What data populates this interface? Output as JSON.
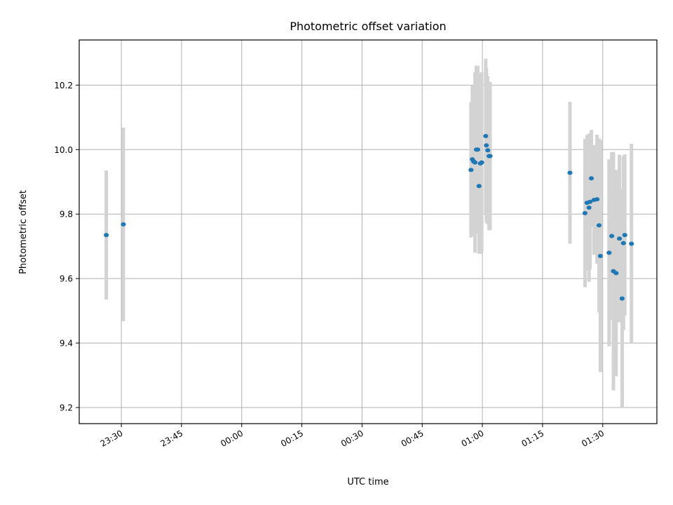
{
  "chart_data": {
    "type": "scatter",
    "title": "Photometric offset variation",
    "xlabel": "UTC time",
    "ylabel": "Photometric offset",
    "x_unit": "UTC time (HH:MM)",
    "xlim": [
      "23:19:30",
      "01:43:30"
    ],
    "ylim": [
      9.15,
      10.34
    ],
    "xticks": [
      "23:30",
      "23:45",
      "00:00",
      "00:15",
      "00:30",
      "00:45",
      "01:00",
      "01:15",
      "01:30"
    ],
    "yticks": [
      9.2,
      9.4,
      9.6,
      9.8,
      10.0,
      10.2
    ],
    "grid": true,
    "legend": "none",
    "colors": {
      "point": "#1f77b4",
      "errorbar": "#d3d3d3",
      "grid": "#b0b0b0"
    },
    "series": [
      {
        "points": [
          {
            "x": "23:26:15",
            "y": 9.735,
            "yerr": 0.2
          },
          {
            "x": "23:30:30",
            "y": 9.768,
            "yerr": 0.3
          },
          {
            "x": "00:57:10",
            "y": 9.937,
            "yerr": 0.21
          },
          {
            "x": "00:57:30",
            "y": 9.97,
            "yerr": 0.23
          },
          {
            "x": "00:57:50",
            "y": 9.963,
            "yerr": 0.23
          },
          {
            "x": "00:58:10",
            "y": 9.96,
            "yerr": 0.28
          },
          {
            "x": "00:58:30",
            "y": 10.0,
            "yerr": 0.26
          },
          {
            "x": "00:58:50",
            "y": 10.0,
            "yerr": 0.26
          },
          {
            "x": "00:59:10",
            "y": 9.887,
            "yerr": 0.21
          },
          {
            "x": "00:59:30",
            "y": 9.957,
            "yerr": 0.28
          },
          {
            "x": "00:59:50",
            "y": 9.96,
            "yerr": 0.28
          },
          {
            "x": "01:00:50",
            "y": 10.042,
            "yerr": 0.24
          },
          {
            "x": "01:01:00",
            "y": 10.013,
            "yerr": 0.24
          },
          {
            "x": "01:01:20",
            "y": 9.998,
            "yerr": 0.23
          },
          {
            "x": "01:01:40",
            "y": 9.98,
            "yerr": 0.23
          },
          {
            "x": "01:01:55",
            "y": 9.98,
            "yerr": 0.23
          },
          {
            "x": "01:21:50",
            "y": 9.928,
            "yerr": 0.22
          },
          {
            "x": "01:25:35",
            "y": 9.803,
            "yerr": 0.23
          },
          {
            "x": "01:26:05",
            "y": 9.835,
            "yerr": 0.21
          },
          {
            "x": "01:26:35",
            "y": 9.82,
            "yerr": 0.23
          },
          {
            "x": "01:26:50",
            "y": 9.838,
            "yerr": 0.21
          },
          {
            "x": "01:27:10",
            "y": 9.911,
            "yerr": 0.15
          },
          {
            "x": "01:27:50",
            "y": 9.844,
            "yerr": 0.17
          },
          {
            "x": "01:28:35",
            "y": 9.846,
            "yerr": 0.2
          },
          {
            "x": "01:29:05",
            "y": 9.765,
            "yerr": 0.27
          },
          {
            "x": "01:29:25",
            "y": 9.67,
            "yerr": 0.36
          },
          {
            "x": "01:31:35",
            "y": 9.68,
            "yerr": 0.29
          },
          {
            "x": "01:32:15",
            "y": 9.732,
            "yerr": 0.26
          },
          {
            "x": "01:32:40",
            "y": 9.623,
            "yerr": 0.37
          },
          {
            "x": "01:33:20",
            "y": 9.617,
            "yerr": 0.32
          },
          {
            "x": "01:34:10",
            "y": 9.724,
            "yerr": 0.26
          },
          {
            "x": "01:34:50",
            "y": 9.538,
            "yerr": 0.34
          },
          {
            "x": "01:35:10",
            "y": 9.71,
            "yerr": 0.27
          },
          {
            "x": "01:35:30",
            "y": 9.735,
            "yerr": 0.25
          },
          {
            "x": "01:37:10",
            "y": 9.708,
            "yerr": 0.31
          }
        ]
      }
    ]
  }
}
